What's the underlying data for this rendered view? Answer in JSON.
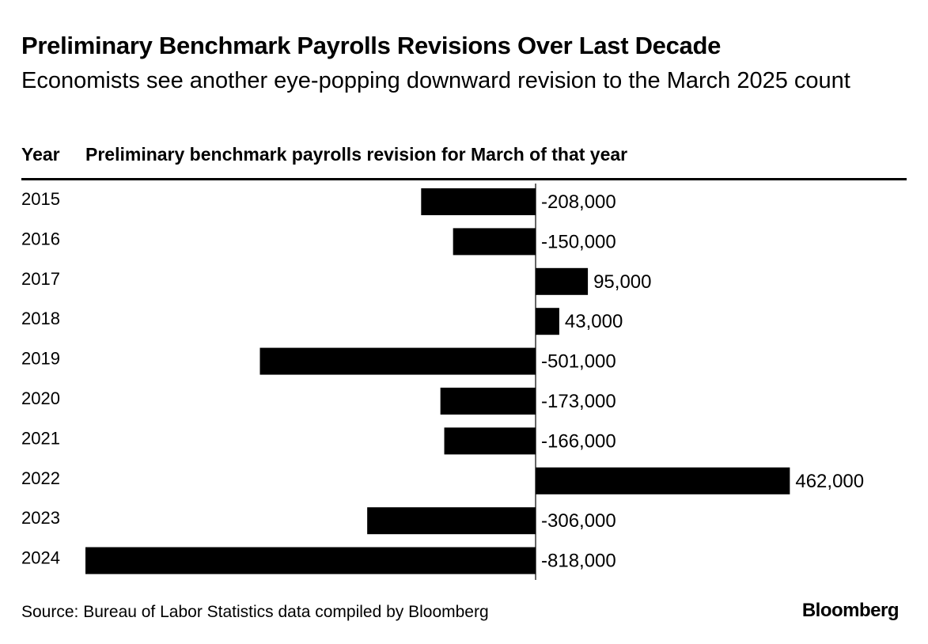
{
  "title": "Preliminary Benchmark Payrolls Revisions Over Last Decade",
  "subtitle": "Economists see another eye-popping downward revision to the March 2025 count",
  "table_header": {
    "year": "Year",
    "column": "Preliminary benchmark payrolls revision for March of that year"
  },
  "source": "Source: Bureau of Labor Statistics data compiled by Bloomberg",
  "brand": "Bloomberg",
  "colors": {
    "bar": "#000000",
    "text": "#000000",
    "background": "#ffffff"
  },
  "chart_data": {
    "type": "bar",
    "orientation": "horizontal",
    "categories": [
      "2015",
      "2016",
      "2017",
      "2018",
      "2019",
      "2020",
      "2021",
      "2022",
      "2023",
      "2024"
    ],
    "values": [
      -208000,
      -150000,
      95000,
      43000,
      -501000,
      -173000,
      -166000,
      462000,
      -306000,
      -818000
    ],
    "value_labels": [
      "-208,000",
      "-150,000",
      "95,000",
      "43,000",
      "-501,000",
      "-173,000",
      "-166,000",
      "462,000",
      "-306,000",
      "-818,000"
    ],
    "title": "Preliminary Benchmark Payrolls Revisions Over Last Decade",
    "xlabel": "Preliminary benchmark payrolls revision for March of that year",
    "ylabel": "Year",
    "xlim": [
      -818000,
      462000
    ],
    "grid": false,
    "legend": "none"
  }
}
